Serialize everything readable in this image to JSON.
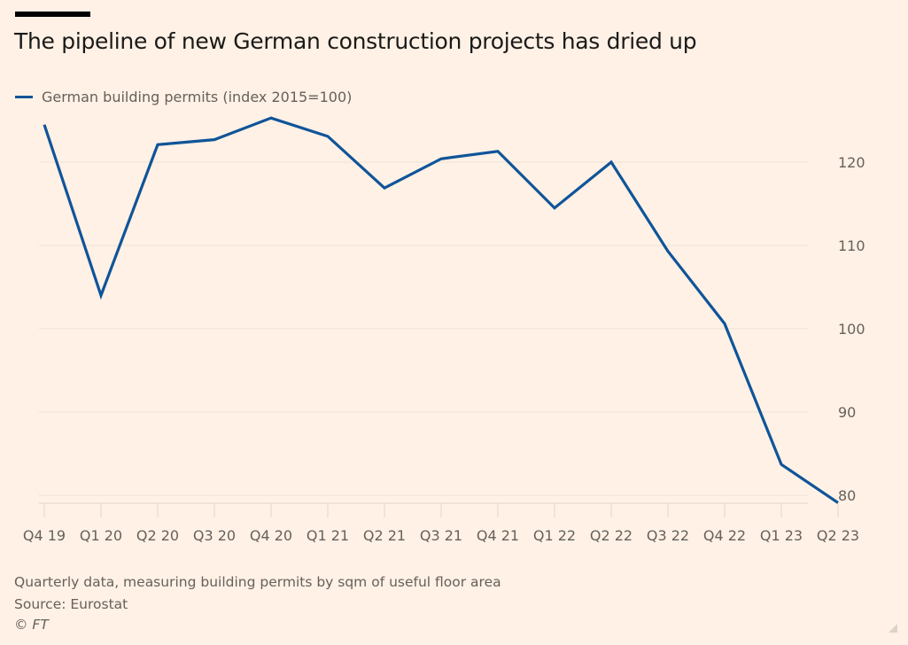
{
  "title": "The pipeline of new German construction projects has dried up",
  "footnotes": {
    "note": "Quarterly data, measuring building permits by sqm of useful floor area",
    "source": "Source: Eurostat",
    "copyright": "© FT"
  },
  "colors": {
    "background": "#fff1e5",
    "series": "#0f5499",
    "grid": "#ece3d9",
    "text": "#66605c"
  },
  "chart_data": {
    "type": "line",
    "title": "The pipeline of new German construction projects has dried up",
    "xlabel": "",
    "ylabel": "",
    "categories": [
      "Q4 19",
      "Q1 20",
      "Q2 20",
      "Q3 20",
      "Q4 20",
      "Q1 21",
      "Q2 21",
      "Q3 21",
      "Q4 21",
      "Q1 22",
      "Q2 22",
      "Q3 22",
      "Q4 22",
      "Q1 23",
      "Q2 23"
    ],
    "series": [
      {
        "name": "German building permits (index 2015=100)",
        "values": [
          124.5,
          104.0,
          122.1,
          122.7,
          125.3,
          123.1,
          116.9,
          120.4,
          121.3,
          114.5,
          120.0,
          109.3,
          100.6,
          83.7,
          79.1
        ]
      }
    ],
    "yticks": [
      80,
      90,
      100,
      110,
      120
    ],
    "ylim": [
      79,
      126
    ],
    "y_axis_side": "right",
    "grid": true,
    "legend": "top-left"
  }
}
